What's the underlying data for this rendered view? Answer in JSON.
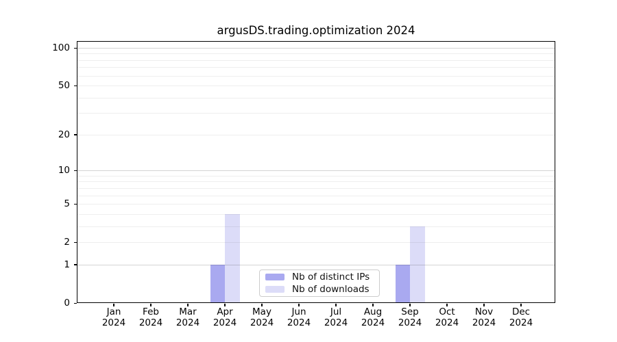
{
  "title": "argusDS.trading.optimization 2024",
  "chart_data": {
    "type": "bar",
    "title": "argusDS.trading.optimization 2024",
    "categories": [
      "Jan 2024",
      "Feb 2024",
      "Mar 2024",
      "Apr 2024",
      "May 2024",
      "Jun 2024",
      "Jul 2024",
      "Aug 2024",
      "Sep 2024",
      "Oct 2024",
      "Nov 2024",
      "Dec 2024"
    ],
    "series": [
      {
        "name": "Nb of distinct IPs",
        "color": "#a9a9f0",
        "values": [
          0,
          0,
          0,
          1,
          0,
          0,
          0,
          0,
          1,
          0,
          0,
          0
        ]
      },
      {
        "name": "Nb of downloads",
        "color": "#dcdcf8",
        "values": [
          0,
          0,
          0,
          4,
          0,
          0,
          0,
          0,
          3,
          0,
          0,
          0
        ]
      }
    ],
    "xlabel": "",
    "ylabel": "",
    "yscale": "symlog (log1p)",
    "ylim": [
      0,
      113
    ],
    "yticks": [
      0,
      1,
      2,
      5,
      10,
      20,
      50,
      100
    ],
    "ytick_labels": [
      "0",
      "1",
      "2",
      "5",
      "10",
      "20",
      "50",
      "100"
    ],
    "major_grid_values": [
      1,
      10,
      100
    ],
    "minor_grid_values": [
      2,
      3,
      4,
      5,
      6,
      7,
      8,
      9,
      20,
      30,
      40,
      60,
      70,
      80,
      90,
      50
    ],
    "grid": "horizontal, major+minor",
    "legend_position": "lower center"
  },
  "legend": {
    "items": [
      {
        "label": "Nb of distinct IPs",
        "color": "#a9a9f0"
      },
      {
        "label": "Nb of downloads",
        "color": "#dcdcf8"
      }
    ]
  }
}
